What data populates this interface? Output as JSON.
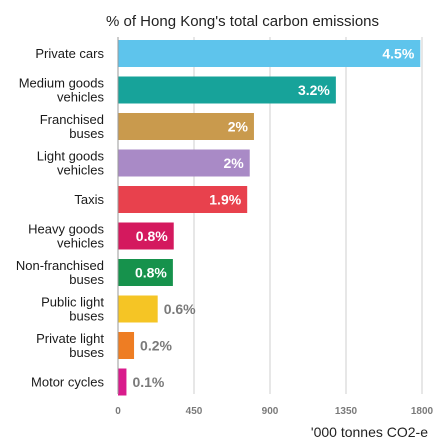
{
  "chart_data": {
    "type": "bar",
    "orientation": "horizontal",
    "title": "% of Hong Kong's total carbon emissions",
    "xlabel": "'000 tonnes CO2-e",
    "ylabel": "",
    "xlim": [
      0,
      1800
    ],
    "xticks": [
      0,
      450,
      900,
      1350,
      1800
    ],
    "grid": true,
    "categories": [
      [
        "Private cars"
      ],
      [
        "Medium goods",
        "vehicles"
      ],
      [
        "Franchised",
        "buses"
      ],
      [
        "Light goods",
        "vehicles"
      ],
      [
        "Taxis"
      ],
      [
        "Heavy goods",
        "vehicles"
      ],
      [
        "Non-franchised",
        "buses"
      ],
      [
        "Public light",
        "buses"
      ],
      [
        "Private light",
        "buses"
      ],
      [
        "Motor cycles"
      ]
    ],
    "values": [
      1790,
      1290,
      805,
      780,
      765,
      330,
      325,
      235,
      95,
      50
    ],
    "labels": [
      "4.5%",
      "3.2%",
      "2%",
      "2%",
      "1.9%",
      "0.8%",
      "0.8%",
      "0.6%",
      "0.2%",
      "0.1%"
    ],
    "colors": [
      "#5ec4ec",
      "#17a39a",
      "#c99a4d",
      "#a98ac6",
      "#e8414d",
      "#d4195e",
      "#16924c",
      "#f5c525",
      "#ee7d23",
      "#d91b8c"
    ],
    "label_inside": [
      true,
      true,
      true,
      true,
      true,
      true,
      true,
      false,
      false,
      false
    ]
  }
}
